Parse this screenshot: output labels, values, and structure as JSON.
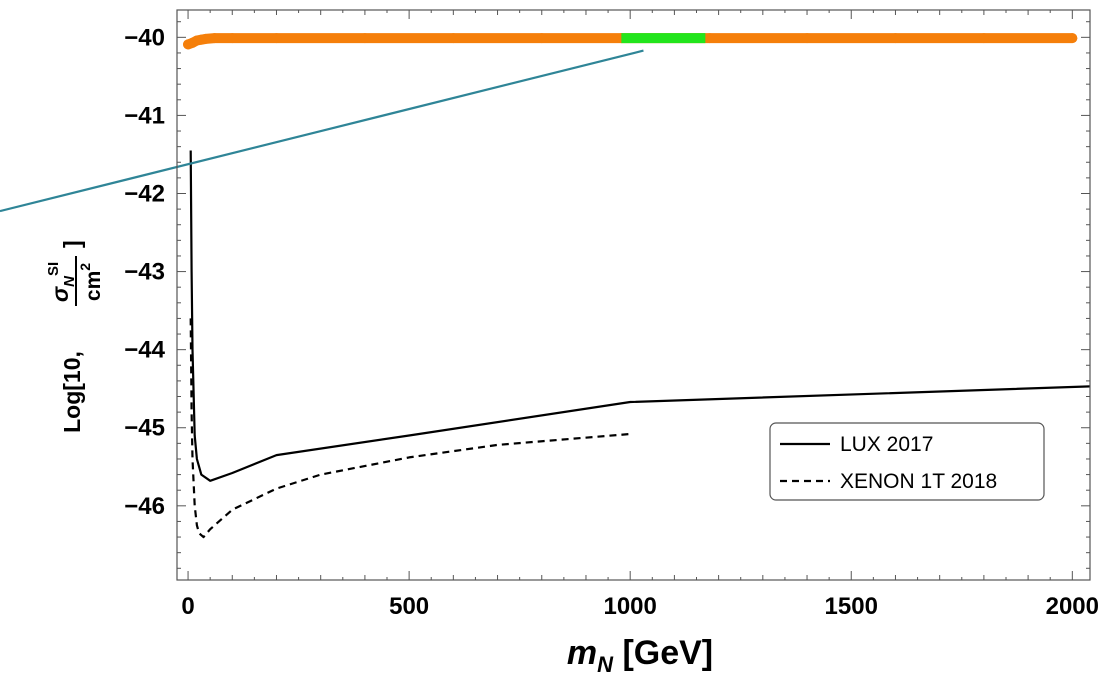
{
  "chart_data": {
    "type": "scatter",
    "title": "",
    "xlabel": {
      "base": "m",
      "sub": "N",
      "unit": "[GeV]"
    },
    "ylabel": {
      "prefix": "Log[10, ",
      "numerator_base": "σ",
      "numerator_sub": "N",
      "numerator_sup": "SI",
      "denominator_base": "cm",
      "denominator_sup": "2",
      "suffix": "]"
    },
    "xlim": [
      -25,
      2040
    ],
    "ylim": [
      -46.95,
      -39.65
    ],
    "x_ticks": [
      0,
      500,
      1000,
      1500,
      2000
    ],
    "x_tick_labels": [
      "0",
      "500",
      "1000",
      "1500",
      "2000"
    ],
    "y_ticks": [
      -46,
      -45,
      -44,
      -43,
      -42,
      -41,
      -40
    ],
    "y_tick_labels": [
      "−46",
      "−45",
      "−44",
      "−43",
      "−42",
      "−41",
      "−40"
    ],
    "grid": false,
    "legend_position": "bottom-right",
    "series": [
      {
        "name": "LUX 2017",
        "style": "solid",
        "color": "#000000",
        "x": [
          6,
          8,
          10,
          15,
          20,
          30,
          50,
          100,
          200,
          500,
          1000,
          2040
        ],
        "y": [
          -41.45,
          -43.0,
          -44.0,
          -45.1,
          -45.4,
          -45.6,
          -45.68,
          -45.58,
          -45.35,
          -45.1,
          -44.67,
          -44.47
        ]
      },
      {
        "name": "XENON 1T 2018",
        "style": "dashed",
        "color": "#000000",
        "x": [
          6,
          8,
          10,
          15,
          20,
          25,
          35,
          50,
          100,
          200,
          300,
          500,
          700,
          1000
        ],
        "y": [
          -43.6,
          -44.8,
          -45.4,
          -46.0,
          -46.25,
          -46.35,
          -46.4,
          -46.3,
          -46.05,
          -45.78,
          -45.6,
          -45.38,
          -45.22,
          -45.08
        ]
      },
      {
        "name": "",
        "style": "points",
        "color": "#f57f0a",
        "x": [
          0,
          10,
          20,
          30,
          40,
          60,
          100,
          200,
          400,
          600,
          800,
          980,
          1180,
          1400,
          1600,
          1800,
          2000
        ],
        "y": [
          -40.09,
          -40.07,
          -40.04,
          -40.03,
          -40.02,
          -40.01,
          -40.01,
          -40.01,
          -40.01,
          -40.01,
          -40.01,
          -40.01,
          -40.01,
          -40.01,
          -40.01,
          -40.01,
          -40.01
        ]
      },
      {
        "name": "",
        "style": "highlight",
        "color": "#22e51c",
        "x": [
          980,
          1170
        ],
        "y": [
          -40.01,
          -40.01
        ]
      }
    ],
    "overlay_line": {
      "color": "#2f8597",
      "y_at_left_edge": -42.2,
      "x_end": 1030,
      "y_end": -40.17
    }
  }
}
